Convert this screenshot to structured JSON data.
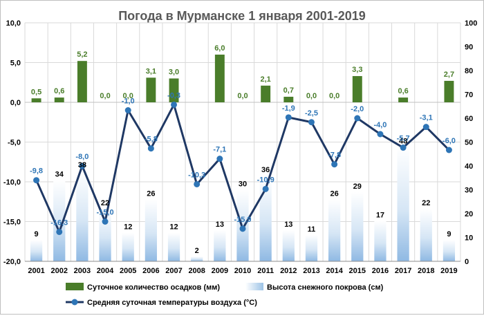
{
  "chart_data": {
    "type": "combo",
    "title": "Погода в Мурманске 1 января 2001-2019",
    "categories": [
      "2001",
      "2002",
      "2003",
      "2004",
      "2005",
      "2006",
      "2007",
      "2008",
      "2009",
      "2010",
      "2011",
      "2012",
      "2013",
      "2014",
      "2015",
      "2016",
      "2017",
      "2018",
      "2019"
    ],
    "left_axis": {
      "range": [
        -20,
        10
      ],
      "ticks": [
        "-20,0",
        "-15,0",
        "-10,0",
        "-5,0",
        "0,0",
        "5,0",
        "10,0"
      ]
    },
    "right_axis": {
      "range": [
        0,
        100
      ],
      "ticks": [
        "0",
        "10",
        "20",
        "30",
        "40",
        "50",
        "60",
        "70",
        "80",
        "90",
        "100"
      ]
    },
    "series": [
      {
        "name": "Суточное количество осадков (мм)",
        "kind": "bar",
        "axis": "left",
        "color": "#4a7d2a",
        "label_color": "#4a7d2a",
        "values": [
          0.5,
          0.6,
          5.2,
          0.0,
          0.0,
          3.1,
          3.0,
          null,
          6.0,
          0.0,
          2.1,
          0.7,
          0.0,
          0.0,
          3.3,
          null,
          0.6,
          null,
          2.7
        ],
        "labels": [
          "0,5",
          "0,6",
          "5,2",
          "0,0",
          "0,0",
          "3,1",
          "3,0",
          "",
          "6,0",
          "0,0",
          "2,1",
          "0,7",
          "0,0",
          "0,0",
          "3,3",
          "",
          "0,6",
          "",
          "2,7"
        ]
      },
      {
        "name": "Высота снежного покрова (см)",
        "kind": "bar",
        "axis": "right",
        "color": "#9cc3e6",
        "label_color": "#000000",
        "values": [
          9,
          34,
          38,
          22,
          12,
          26,
          12,
          2,
          13,
          30,
          36,
          13,
          11,
          26,
          29,
          17,
          48,
          22,
          9
        ],
        "labels": [
          "9",
          "34",
          "38",
          "22",
          "12",
          "26",
          "12",
          "2",
          "13",
          "30",
          "36",
          "13",
          "11",
          "26",
          "29",
          "17",
          "48",
          "22",
          "9"
        ]
      },
      {
        "name": "Средняя суточная температуры воздуха (°С)",
        "kind": "line",
        "axis": "left",
        "color": "#1f3864",
        "marker_color": "#2e75b6",
        "label_color": "#2e75b6",
        "values": [
          -9.8,
          -16.3,
          -8.0,
          -15.0,
          -1.0,
          -5.8,
          -0.3,
          -10.3,
          -7.1,
          -15.9,
          -10.9,
          -1.9,
          -2.5,
          -7.8,
          -2.0,
          -4.0,
          -5.7,
          -3.1,
          -6.0
        ],
        "labels": [
          "-9,8",
          "-16,3",
          "-8,0",
          "-15,0",
          "-1,0",
          "-5,8",
          "-0,3",
          "-10,3",
          "-7,1",
          "-15,9",
          "-10,9",
          "-1,9",
          "-2,5",
          "-7,8",
          "-2,0",
          "-4,0",
          "-5,7",
          "-3,1",
          "-6,0"
        ]
      }
    ],
    "legend_position": "bottom"
  }
}
